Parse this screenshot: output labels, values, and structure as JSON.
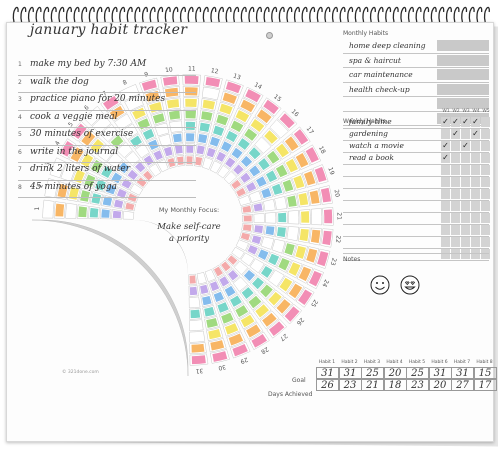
{
  "title": "january habit tracker",
  "habits": [
    {
      "num": "1",
      "text": "make my bed by 7:30 AM"
    },
    {
      "num": "2",
      "text": "walk the dog"
    },
    {
      "num": "3",
      "text": "practice piano for 20 minutes"
    },
    {
      "num": "4",
      "text": "cook a veggie meal"
    },
    {
      "num": "5",
      "text": "30 minutes of exercise"
    },
    {
      "num": "6",
      "text": "write in the journal"
    },
    {
      "num": "7",
      "text": "drink 2 liters of water"
    },
    {
      "num": "8",
      "text": "45 minutes of yoga"
    }
  ],
  "focus": {
    "label": "My Monthly Focus:",
    "line1": "Make self-care",
    "line2": "a priority"
  },
  "day_numbers": [
    "1",
    "2",
    "3",
    "4",
    "5",
    "6",
    "7",
    "8",
    "9",
    "10",
    "11",
    "12",
    "13",
    "14",
    "15",
    "16",
    "17",
    "18",
    "19",
    "20",
    "21",
    "22",
    "23",
    "24",
    "25",
    "26",
    "27",
    "28",
    "29",
    "30",
    "31"
  ],
  "monthly": {
    "heading": "Monthly Habits",
    "items": [
      "home deep cleaning",
      "spa & haircut",
      "car maintenance",
      "health check-up",
      "",
      ""
    ]
  },
  "weekly": {
    "heading": "Weekly Habits",
    "week_labels": [
      "W1",
      "W2",
      "W3",
      "W4",
      "W5"
    ],
    "items": [
      {
        "text": "family time",
        "checks": [
          "✓",
          "✓",
          "✓",
          "✓",
          ""
        ]
      },
      {
        "text": "gardening",
        "checks": [
          "",
          "✓",
          "",
          "✓",
          ""
        ]
      },
      {
        "text": "watch a movie",
        "checks": [
          "✓",
          "",
          "✓",
          "",
          ""
        ]
      },
      {
        "text": "read a book",
        "checks": [
          "✓",
          "",
          "",
          "",
          ""
        ]
      },
      {
        "text": "",
        "checks": [
          "",
          "",
          "",
          "",
          ""
        ]
      },
      {
        "text": "",
        "checks": [
          "",
          "",
          "",
          "",
          ""
        ]
      },
      {
        "text": "",
        "checks": [
          "",
          "",
          "",
          "",
          ""
        ]
      },
      {
        "text": "",
        "checks": [
          "",
          "",
          "",
          "",
          ""
        ]
      },
      {
        "text": "",
        "checks": [
          "",
          "",
          "",
          "",
          ""
        ]
      },
      {
        "text": "",
        "checks": [
          "",
          "",
          "",
          "",
          ""
        ]
      },
      {
        "text": "",
        "checks": [
          "",
          "",
          "",
          "",
          ""
        ]
      },
      {
        "text": "",
        "checks": [
          "",
          "",
          "",
          "",
          ""
        ]
      }
    ]
  },
  "notes": {
    "heading": "Notes",
    "icons": [
      "smiley-icon",
      "heart-eyes-icon"
    ]
  },
  "summary": {
    "headers": [
      "Habit 1",
      "Habit 2",
      "Habit 3",
      "Habit 4",
      "Habit 5",
      "Habit 6",
      "Habit 7",
      "Habit 8"
    ],
    "goal_label": "Goal",
    "achieved_label": "Days Achieved",
    "goal": [
      "31",
      "31",
      "25",
      "20",
      "25",
      "31",
      "31",
      "15"
    ],
    "achieved": [
      "26",
      "23",
      "21",
      "18",
      "23",
      "20",
      "27",
      "17"
    ]
  },
  "copyright": "© 321done.com",
  "colors": {
    "pink": "#f07aa8",
    "orange": "#f7a94a",
    "yellow": "#f3e14c",
    "green": "#8fd36a",
    "teal": "#5fcfc0",
    "blue": "#6fb0ea",
    "purple": "#b79ae8",
    "rose": "#f29b9b",
    "band": "#cfcfcf"
  }
}
